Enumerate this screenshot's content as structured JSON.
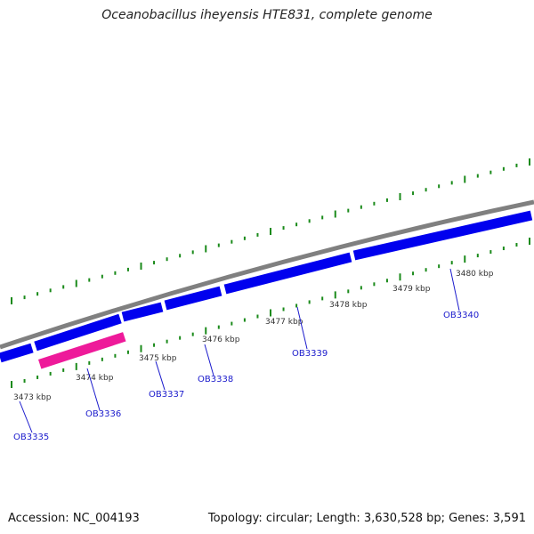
{
  "title": "Oceanobacillus iheyensis HTE831, complete genome",
  "footer": {
    "accession": "Accession: NC_004193",
    "summary": "Topology: circular; Length: 3,630,528 bp; Genes: 3,591"
  },
  "colors": {
    "backbone": "#808080",
    "gene_forward": "#0000ee",
    "gene_highlight": "#ee1a9a",
    "ticks": "#1a8a1a",
    "gene_label": "#1a1acc",
    "kbp_label": "#333333"
  },
  "kbp_labels": [
    "3473 kbp",
    "3474 kbp",
    "3475 kbp",
    "3476 kbp",
    "3477 kbp",
    "3478 kbp",
    "3479 kbp",
    "3480 kbp"
  ],
  "genes": [
    {
      "id": "OB3335"
    },
    {
      "id": "OB3336"
    },
    {
      "id": "OB3337"
    },
    {
      "id": "OB3338"
    },
    {
      "id": "OB3339"
    },
    {
      "id": "OB3340"
    }
  ]
}
